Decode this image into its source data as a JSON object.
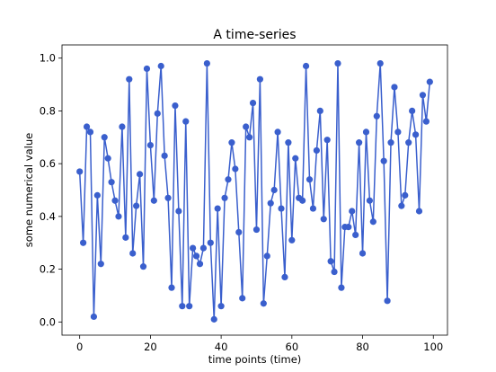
{
  "chart_data": {
    "type": "line",
    "title": "A time-series",
    "xlabel": "time points (time)",
    "ylabel": "some numerical value",
    "xlim": [
      -5,
      104
    ],
    "ylim": [
      -0.05,
      1.05
    ],
    "xticks": [
      0,
      20,
      40,
      60,
      80,
      100
    ],
    "yticks": [
      0.0,
      0.2,
      0.4,
      0.6,
      0.8,
      1.0
    ],
    "xtick_labels": [
      "0",
      "20",
      "40",
      "60",
      "80",
      "100"
    ],
    "ytick_labels": [
      "0.0",
      "0.2",
      "0.4",
      "0.6",
      "0.8",
      "1.0"
    ],
    "grid": false,
    "legend": null,
    "line_color": "#3a5fcd",
    "marker": "circle",
    "series": [
      {
        "x": [
          0,
          1,
          2,
          3,
          4,
          5,
          6,
          7,
          8,
          9,
          10,
          11,
          12,
          13,
          14,
          15,
          16,
          17,
          18,
          19,
          20,
          21,
          22,
          23,
          24,
          25,
          26,
          27,
          28,
          29,
          30,
          31,
          32,
          33,
          34,
          35,
          36,
          37,
          38,
          39,
          40,
          41,
          42,
          43,
          44,
          45,
          46,
          47,
          48,
          49,
          50,
          51,
          52,
          53,
          54,
          55,
          56,
          57,
          58,
          59,
          60,
          61,
          62,
          63,
          64,
          65,
          66,
          67,
          68,
          69,
          70,
          71,
          72,
          73,
          74,
          75,
          76,
          77,
          78,
          79,
          80,
          81,
          82,
          83,
          84,
          85,
          86,
          87,
          88,
          89,
          90,
          91,
          92,
          93,
          94,
          95,
          96,
          97,
          98,
          99
        ],
        "values": [
          0.57,
          0.3,
          0.74,
          0.72,
          0.02,
          0.48,
          0.22,
          0.7,
          0.62,
          0.53,
          0.46,
          0.4,
          0.74,
          0.32,
          0.92,
          0.26,
          0.44,
          0.56,
          0.21,
          0.96,
          0.67,
          0.46,
          0.79,
          0.97,
          0.63,
          0.47,
          0.13,
          0.82,
          0.42,
          0.06,
          0.76,
          0.06,
          0.28,
          0.25,
          0.22,
          0.28,
          0.98,
          0.3,
          0.01,
          0.43,
          0.06,
          0.47,
          0.54,
          0.68,
          0.58,
          0.34,
          0.09,
          0.74,
          0.7,
          0.83,
          0.35,
          0.92,
          0.07,
          0.25,
          0.45,
          0.5,
          0.72,
          0.43,
          0.17,
          0.68,
          0.31,
          0.62,
          0.47,
          0.46,
          0.97,
          0.54,
          0.43,
          0.65,
          0.8,
          0.39,
          0.69,
          0.23,
          0.19,
          0.98,
          0.13,
          0.36,
          0.36,
          0.42,
          0.33,
          0.68,
          0.26,
          0.72,
          0.46,
          0.38,
          0.78,
          0.98,
          0.61,
          0.08,
          0.68,
          0.89,
          0.72,
          0.44,
          0.48,
          0.68,
          0.8,
          0.71,
          0.42,
          0.86,
          0.76,
          0.91
        ]
      }
    ]
  }
}
